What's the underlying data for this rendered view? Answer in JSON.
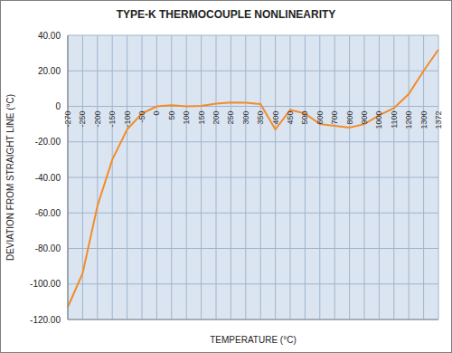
{
  "chart_data": {
    "type": "line",
    "title": "TYPE-K THERMOCOUPLE NONLINEARITY",
    "x_label": "TEMPERATURE (°C)",
    "y_label": "DEVIATION FROM STRAIGHT LINE (°C)",
    "categories": [
      "-270",
      "-250",
      "-200",
      "-150",
      "-100",
      "-50",
      "0",
      "50",
      "100",
      "150",
      "200",
      "250",
      "300",
      "350",
      "400",
      "450",
      "500",
      "600",
      "700",
      "800",
      "900",
      "1000",
      "1100",
      "1200",
      "1300",
      "1372"
    ],
    "values": [
      -113,
      -94,
      -56,
      -30,
      -13,
      -4,
      0,
      0.6,
      0,
      0.2,
      1.5,
      2.2,
      2,
      1.3,
      -13,
      -2,
      -4,
      -10,
      -11,
      -12,
      -10,
      -5,
      -1,
      7,
      20,
      32
    ],
    "color": "#f28c28",
    "ylim": [
      -120,
      40
    ],
    "yticks": [
      {
        "value": -120,
        "label": "-120.00"
      },
      {
        "value": -100,
        "label": "-100.00"
      },
      {
        "value": -80,
        "label": "-80.00"
      },
      {
        "value": -60,
        "label": "-60.00"
      },
      {
        "value": -40,
        "label": "-40.00"
      },
      {
        "value": -20,
        "label": "-20.00"
      },
      0,
      {
        "value": 20,
        "label": "20.00"
      },
      {
        "value": 40,
        "label": "40.00"
      }
    ],
    "grid": true
  }
}
